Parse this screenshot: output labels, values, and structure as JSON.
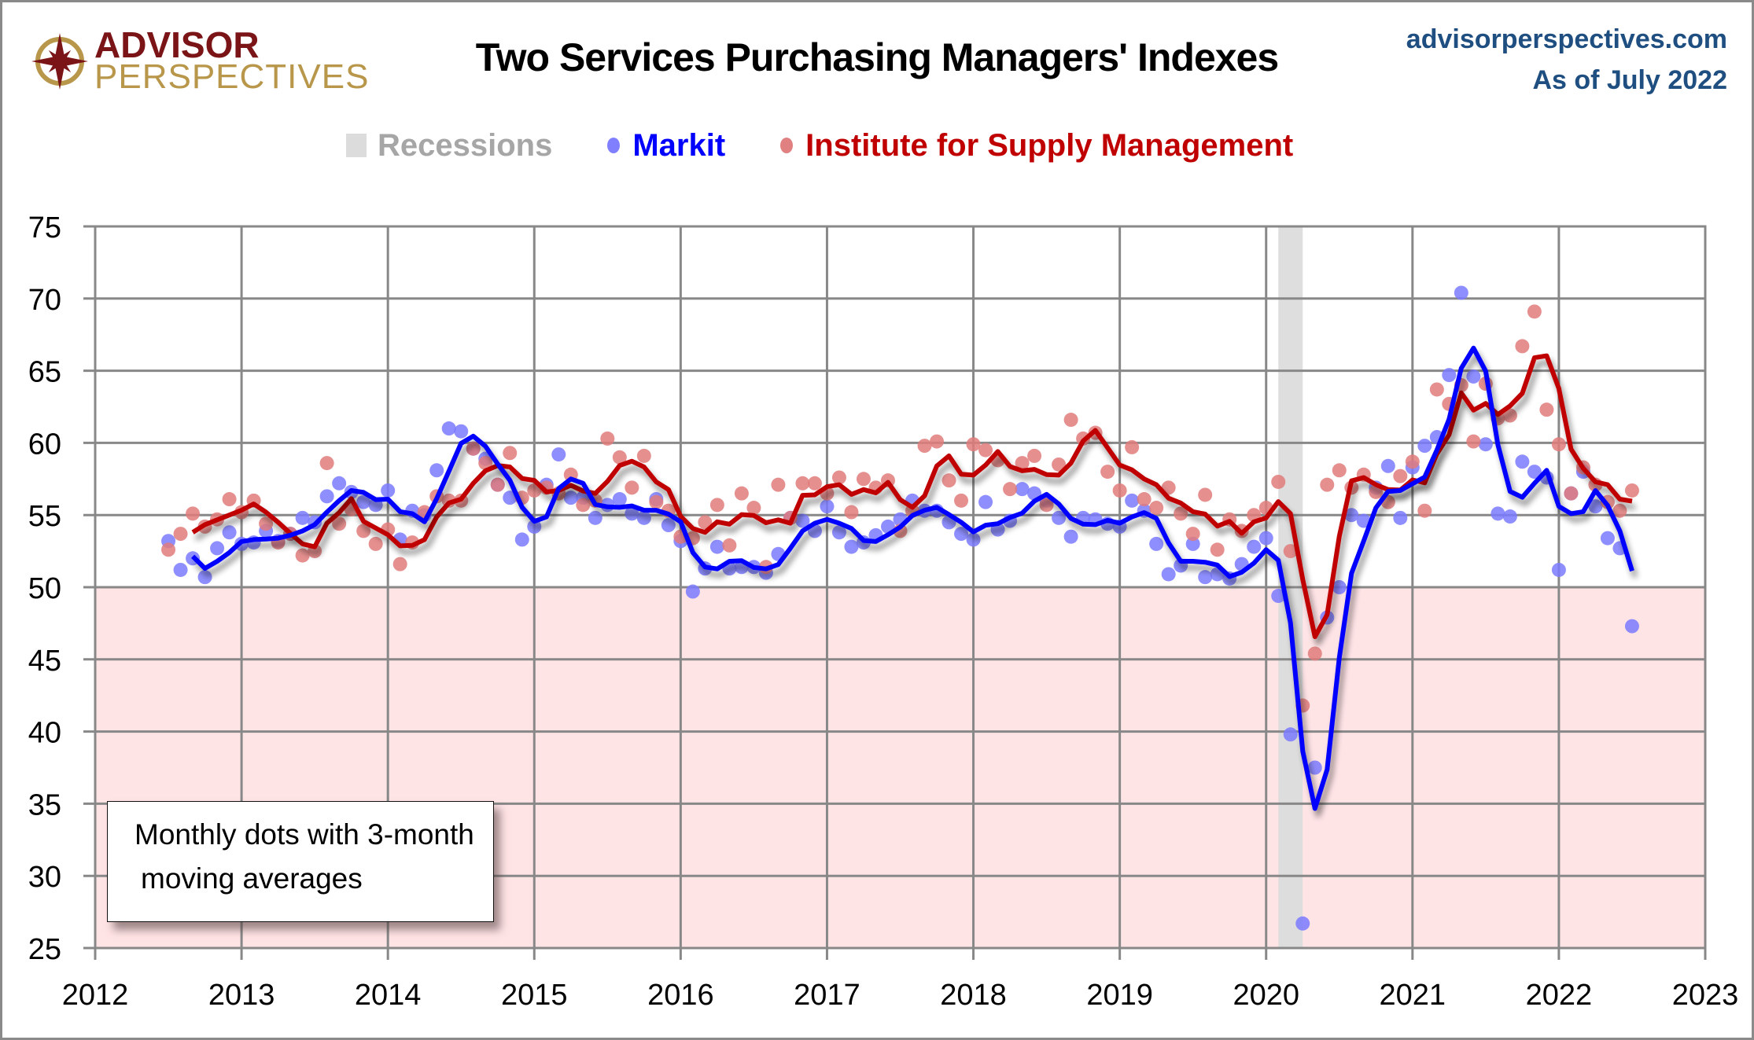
{
  "header": {
    "logo_top": "ADVISOR",
    "logo_bottom": "PERSPECTIVES",
    "site": "advisorperspectives.com",
    "as_of": "As of July 2022"
  },
  "note": {
    "line1": "Monthly dots with 3-month",
    "line2": "moving averages"
  },
  "colors": {
    "markit_line": "#0000ff",
    "markit_dot": "#7a7aff",
    "ism_line": "#c00000",
    "ism_dot": "#e07b7b",
    "recession": "#dcdcdc",
    "contraction_zone": "#ffe4e6",
    "grid": "#888888"
  },
  "chart_data": {
    "type": "scatter",
    "title": "Two Services Purchasing Managers' Indexes",
    "xlabel": "",
    "ylabel": "",
    "xlim": [
      2012,
      2023
    ],
    "ylim": [
      25,
      75
    ],
    "x_ticks": [
      "2012",
      "2013",
      "2014",
      "2015",
      "2016",
      "2017",
      "2018",
      "2019",
      "2020",
      "2021",
      "2022",
      "2023"
    ],
    "y_ticks": [
      "75",
      "70",
      "65",
      "60",
      "55",
      "50",
      "45",
      "40",
      "35",
      "30",
      "25"
    ],
    "grid": true,
    "contraction_below": 50,
    "legend_position": "top-center",
    "legend": [
      {
        "name": "Recessions",
        "kind": "band"
      },
      {
        "name": "Markit",
        "kind": "dot"
      },
      {
        "name": "Institute for Supply Management",
        "kind": "dot"
      }
    ],
    "recessions": [
      {
        "start": "2020-02",
        "end": "2020-04"
      }
    ],
    "start_month": "2012-07",
    "moving_average_window": 3,
    "series": [
      {
        "name": "Markit",
        "values": [
          53.2,
          51.2,
          52.0,
          50.7,
          52.7,
          53.8,
          53.0,
          53.1,
          53.9,
          53.2,
          53.7,
          54.8,
          54.5,
          56.3,
          57.2,
          56.6,
          55.9,
          55.7,
          56.7,
          53.3,
          55.3,
          55.0,
          58.1,
          61.0,
          60.8,
          59.6,
          58.9,
          57.1,
          56.2,
          53.3,
          54.2,
          57.1,
          59.2,
          56.2,
          56.2,
          54.8,
          55.7,
          56.1,
          55.1,
          54.8,
          56.1,
          54.3,
          53.2,
          49.7,
          51.3,
          52.8,
          51.3,
          51.4,
          51.4,
          51.0,
          52.3,
          54.8,
          54.6,
          53.9,
          55.6,
          53.8,
          52.8,
          53.1,
          53.6,
          54.2,
          54.7,
          56.0,
          55.3,
          55.3,
          54.5,
          53.7,
          53.3,
          55.9,
          54.0,
          54.6,
          56.8,
          56.5,
          56.0,
          54.8,
          53.5,
          54.8,
          54.7,
          54.4,
          54.2,
          56.0,
          55.3,
          53.0,
          50.9,
          51.5,
          53.0,
          50.7,
          50.9,
          50.6,
          51.6,
          52.8,
          53.4,
          49.4,
          39.8,
          26.7,
          37.5,
          47.9,
          50.0,
          55.0,
          54.6,
          56.9,
          58.4,
          54.8,
          58.3,
          59.8,
          60.4,
          64.7,
          70.4,
          64.6,
          59.9,
          55.1,
          54.9,
          58.7,
          58.0,
          57.6,
          51.2,
          56.5,
          58.0,
          55.6,
          53.4,
          52.7,
          47.3
        ]
      },
      {
        "name": "Institute for Supply Management",
        "values": [
          52.6,
          53.7,
          55.1,
          54.2,
          54.7,
          56.1,
          55.2,
          56.0,
          54.4,
          53.1,
          53.7,
          52.2,
          52.5,
          58.6,
          54.4,
          55.4,
          53.9,
          53.0,
          54.0,
          51.6,
          53.1,
          55.2,
          56.3,
          56.0,
          56.0,
          59.6,
          58.6,
          57.1,
          59.3,
          56.2,
          56.7,
          56.9,
          56.5,
          57.8,
          55.7,
          56.0,
          60.3,
          59.0,
          56.9,
          59.1,
          55.9,
          55.3,
          53.5,
          53.4,
          54.5,
          55.7,
          52.9,
          56.5,
          55.5,
          51.4,
          57.1,
          54.8,
          57.2,
          57.2,
          56.5,
          57.6,
          55.2,
          57.5,
          56.9,
          57.4,
          53.9,
          55.3,
          59.8,
          60.1,
          57.4,
          56.0,
          59.9,
          59.5,
          58.8,
          56.8,
          58.6,
          59.1,
          55.7,
          58.5,
          61.6,
          60.3,
          60.7,
          58.0,
          56.7,
          59.7,
          56.1,
          55.5,
          56.9,
          55.1,
          53.7,
          56.4,
          52.6,
          54.7,
          53.9,
          55.0,
          55.5,
          57.3,
          52.5,
          41.8,
          45.4,
          57.1,
          58.1,
          56.9,
          57.8,
          56.6,
          55.9,
          57.7,
          58.7,
          55.3,
          63.7,
          62.7,
          64.0,
          60.1,
          64.1,
          61.7,
          61.9,
          66.7,
          69.1,
          62.3,
          59.9,
          56.5,
          58.3,
          57.1,
          55.9,
          55.3,
          56.7
        ]
      }
    ]
  }
}
